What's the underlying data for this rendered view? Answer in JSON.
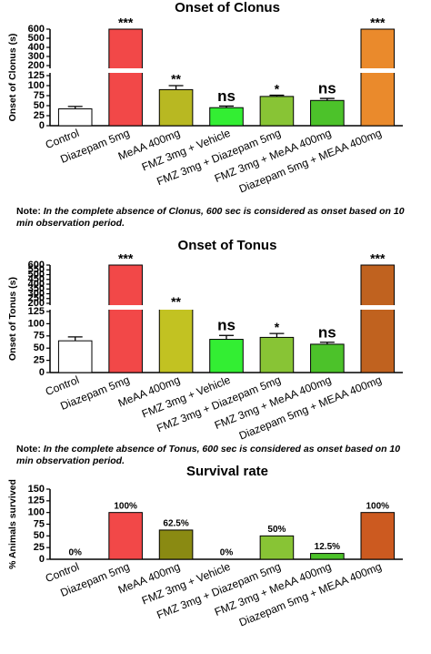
{
  "chart_data": [
    {
      "type": "bar",
      "title": "Onset of Clonus",
      "y_label": "Onset of Clonus (s)",
      "categories": [
        "Control",
        "Diazepam 5mg",
        "MeAA 400mg",
        "FMZ 3mg + Vehicle",
        "FMZ 3mg + Diazepam 5mg",
        "FMZ 3mg + MeAA 400mg",
        "Diazepam 5mg + MEAA 400mg"
      ],
      "values": [
        42,
        600,
        90,
        45,
        73,
        63,
        600
      ],
      "errors": [
        6,
        0,
        10,
        4,
        3,
        5,
        0
      ],
      "annotations": [
        null,
        "***",
        "**",
        "ns",
        "*",
        "ns",
        "***"
      ],
      "colors": [
        "#ffffff",
        "#f24848",
        "#b8b822",
        "#33ee33",
        "#88c435",
        "#4cc22a",
        "#ea8a2c"
      ],
      "ylim": [
        0,
        600
      ],
      "axis_break": [
        125,
        200
      ],
      "yticks": [
        0,
        25,
        50,
        75,
        100,
        125,
        200,
        300,
        400,
        500,
        600
      ],
      "note": {
        "label": "Note:",
        "text": "In the complete absence of Clonus, 600 sec is considered as onset based on 10 min observation period."
      }
    },
    {
      "type": "bar",
      "title": "Onset of Tonus",
      "y_label": "Onset of Tonus (s)",
      "categories": [
        "Control",
        "Diazepam 5mg",
        "MeAA 400mg",
        "FMZ 3mg + Vehicle",
        "FMZ 3mg + Diazepam 5mg",
        "FMZ 3mg + MeAA 400mg",
        "Diazepam 5mg + MEAA 400mg"
      ],
      "values": [
        65,
        600,
        150,
        68,
        72,
        58,
        600
      ],
      "errors": [
        8,
        0,
        5,
        8,
        8,
        4,
        0
      ],
      "annotations": [
        null,
        "***",
        "**",
        "ns",
        "*",
        "ns",
        "***"
      ],
      "colors": [
        "#ffffff",
        "#f24848",
        "#c2c222",
        "#33ee33",
        "#88c435",
        "#4cc22a",
        "#c0621f"
      ],
      "ylim": [
        0,
        600
      ],
      "axis_break": [
        125,
        200
      ],
      "yticks": [
        0,
        25,
        50,
        75,
        100,
        125,
        200,
        250,
        300,
        350,
        400,
        450,
        500,
        550,
        600
      ],
      "note": {
        "label": "Note:",
        "text": "In the complete absence of Tonus, 600 sec is considered as onset based on 10 min observation period."
      }
    },
    {
      "type": "bar",
      "title": "Survival rate",
      "y_label": "% Animals survived",
      "categories": [
        "Control",
        "Diazepam 5mg",
        "MeAA 400mg",
        "FMZ 3mg + Vehicle",
        "FMZ 3mg + Diazepam 5mg",
        "FMZ 3mg + MeAA 400mg",
        "Diazepam 5mg + MEAA 400mg"
      ],
      "values": [
        0,
        100,
        62.5,
        0,
        50,
        12.5,
        100
      ],
      "value_labels": [
        "0%",
        "100%",
        "62.5%",
        "0%",
        "50%",
        "12.5%",
        "100%"
      ],
      "colors": [
        "#ffffff",
        "#f24848",
        "#8a8a12",
        "#33ee33",
        "#88c435",
        "#4cc22a",
        "#cc5a20"
      ],
      "ylim": [
        0,
        150
      ],
      "yticks": [
        0,
        25,
        50,
        75,
        100,
        125,
        150
      ]
    }
  ]
}
